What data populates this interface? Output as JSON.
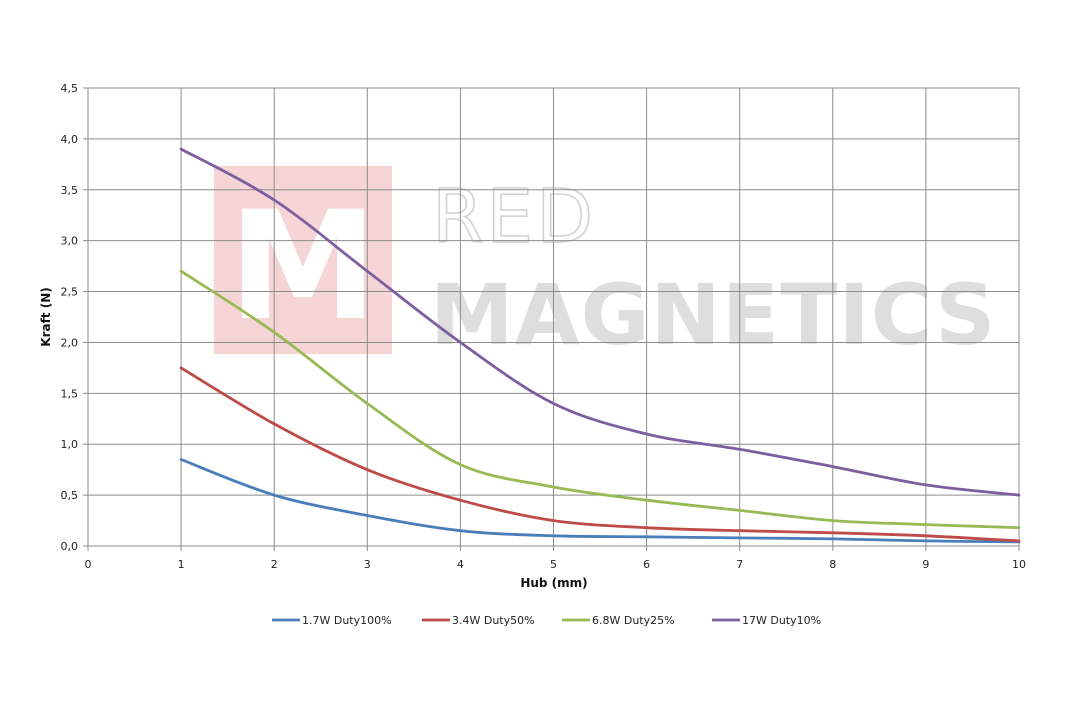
{
  "watermark": {
    "logo_letter": "M",
    "line1": "RED",
    "line2": "MAGNETICS",
    "logo_color": "#f5d5d5"
  },
  "chart_data": {
    "type": "line",
    "xlabel": "Hub (mm)",
    "ylabel": "Kraft (N)",
    "xlim": [
      0,
      10
    ],
    "ylim": [
      0,
      4.5
    ],
    "x_ticks": [
      "0",
      "1",
      "2",
      "3",
      "4",
      "5",
      "6",
      "7",
      "8",
      "9",
      "10"
    ],
    "y_ticks": [
      "0,0",
      "0,5",
      "1,0",
      "1,5",
      "2,0",
      "2,5",
      "3,0",
      "3,5",
      "4,0",
      "4,5"
    ],
    "grid": true,
    "legend_position": "bottom",
    "x": [
      1,
      2,
      3,
      4,
      5,
      6,
      7,
      8,
      9,
      10
    ],
    "series": [
      {
        "name": "1.7W Duty100%",
        "color": "#4a7ebb",
        "values": [
          0.85,
          0.5,
          0.3,
          0.15,
          0.1,
          0.09,
          0.08,
          0.07,
          0.05,
          0.04
        ]
      },
      {
        "name": "3.4W Duty50%",
        "color": "#be4b48",
        "values": [
          1.75,
          1.2,
          0.75,
          0.45,
          0.25,
          0.18,
          0.15,
          0.13,
          0.1,
          0.05
        ]
      },
      {
        "name": "6.8W Duty25%",
        "color": "#98b954",
        "values": [
          2.7,
          2.1,
          1.4,
          0.8,
          0.58,
          0.45,
          0.35,
          0.25,
          0.21,
          0.18
        ]
      },
      {
        "name": "17W Duty10%",
        "color": "#7d5fa0",
        "values": [
          3.9,
          3.4,
          2.7,
          2.0,
          1.4,
          1.1,
          0.95,
          0.78,
          0.6,
          0.5
        ]
      }
    ]
  }
}
